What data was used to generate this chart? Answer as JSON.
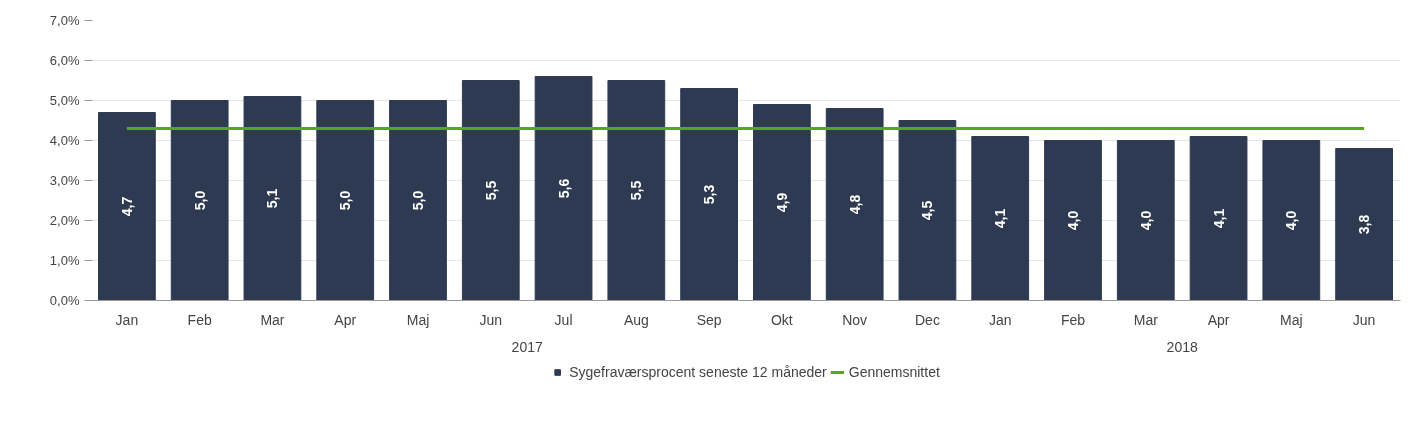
{
  "chart_data": {
    "type": "bar",
    "categories": [
      "Jan",
      "Feb",
      "Mar",
      "Apr",
      "Maj",
      "Jun",
      "Jul",
      "Aug",
      "Sep",
      "Okt",
      "Nov",
      "Dec",
      "Jan",
      "Feb",
      "Mar",
      "Apr",
      "Maj",
      "Jun"
    ],
    "series": [
      {
        "name": "Sygefraværsprocent seneste 12 måneder",
        "color": "#2e3a52",
        "values": [
          4.7,
          5.0,
          5.1,
          5.0,
          5.0,
          5.5,
          5.6,
          5.5,
          5.3,
          4.9,
          4.8,
          4.5,
          4.1,
          4.0,
          4.0,
          4.1,
          4.0,
          3.8
        ],
        "value_labels": [
          "4,7",
          "5,0",
          "5,1",
          "5,0",
          "5,0",
          "5,5",
          "5,6",
          "5,5",
          "5,3",
          "4,9",
          "4,8",
          "4,5",
          "4,1",
          "4,0",
          "4,0",
          "4,1",
          "4,0",
          "3,8"
        ]
      },
      {
        "name": "Gennemsnittet",
        "type": "line",
        "color": "#5aa51e",
        "values": [
          4.3,
          4.3,
          4.3,
          4.3,
          4.3,
          4.3,
          4.3,
          4.3,
          4.3,
          4.3,
          4.3,
          4.3,
          4.3,
          4.3,
          4.3,
          4.3,
          4.3,
          4.3
        ]
      }
    ],
    "annotations": [
      "2017",
      "2018"
    ],
    "ylim": [
      0,
      7
    ],
    "yticks": [
      {
        "value": 0,
        "label": "0,0%"
      },
      {
        "value": 1,
        "label": "1,0%"
      },
      {
        "value": 2,
        "label": "2,0%"
      },
      {
        "value": 3,
        "label": "3,0%"
      },
      {
        "value": 4,
        "label": "4,0%"
      },
      {
        "value": 5,
        "label": "5,0%"
      },
      {
        "value": 6,
        "label": "6,0%"
      },
      {
        "value": 7,
        "label": "7,0%"
      }
    ],
    "grid": "y",
    "legend": "bottom",
    "marker": "none",
    "line_style": "solid"
  }
}
